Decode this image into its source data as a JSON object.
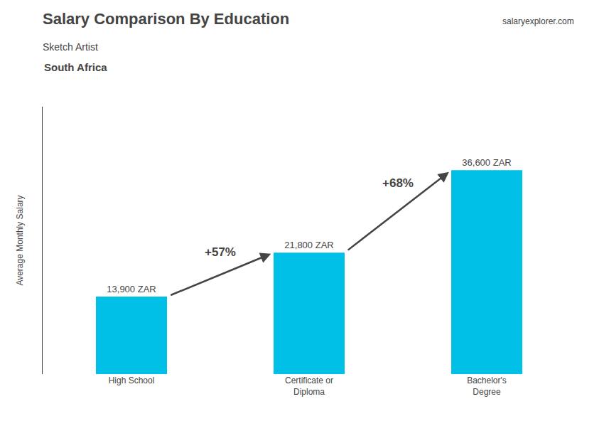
{
  "chart_data": {
    "type": "bar",
    "title": "Salary Comparison By Education",
    "subtitle": "Sketch Artist",
    "ylabel": "Average Monthly Salary",
    "categories": [
      "High School",
      "Certificate or\nDiploma",
      "Bachelor's\nDegree"
    ],
    "values": [
      13900,
      21800,
      36600
    ],
    "value_labels": [
      "13,900 ZAR",
      "21,800 ZAR",
      "36,600 ZAR"
    ],
    "data_labels": true,
    "color": "#00c0e8",
    "ylim": [
      0,
      48000
    ],
    "yticks": [],
    "grid": false,
    "tick_labels": "x",
    "annotations": [
      {
        "text": "South Africa"
      },
      {
        "text": "salaryexplorer.com"
      },
      {
        "text": "+57%",
        "from": "High School",
        "to": "Certificate or\nDiploma"
      },
      {
        "text": "+68%",
        "from": "Certificate or\nDiploma",
        "to": "Bachelor's\nDegree"
      }
    ]
  }
}
